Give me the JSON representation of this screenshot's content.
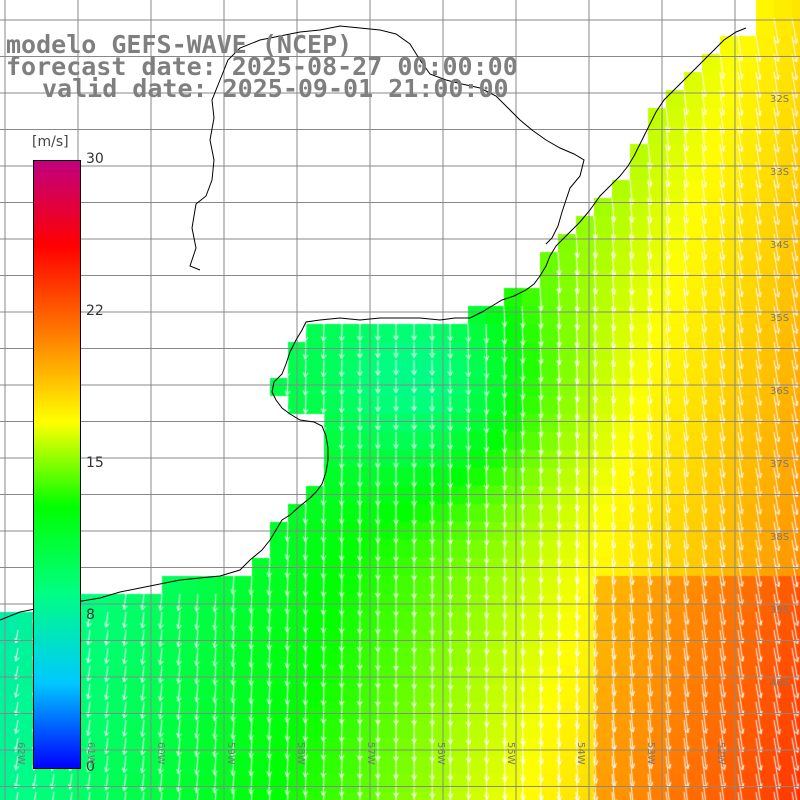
{
  "title": {
    "line1": "modelo GEFS-WAVE (NCEP)",
    "line2": "forecast date: 2025-08-27 00:00:00",
    "line3": "valid date: 2025-09-01 21:00:00"
  },
  "colorbar": {
    "unit": "[m/s]",
    "ticks": [
      "30",
      "22",
      "15",
      "8",
      "0"
    ],
    "stops": [
      "#0000ff",
      "#00c8ff",
      "#00ff80",
      "#00ff00",
      "#ffff00",
      "#ff8000",
      "#ff0000",
      "#c00080"
    ]
  },
  "lat_labels": [
    "32S",
    "33S",
    "34S",
    "35S",
    "36S",
    "37S",
    "38S",
    "39S",
    "40S"
  ],
  "lon_labels": [
    "62W",
    "61W",
    "60W",
    "59W",
    "58W",
    "57W",
    "56W",
    "55W",
    "54W",
    "53W",
    "52W"
  ],
  "colors": {
    "land": "#ffffff",
    "coast": "#000000",
    "grid": "#888888",
    "arrows": "#ffffff",
    "title": "#7f7f7f"
  }
}
